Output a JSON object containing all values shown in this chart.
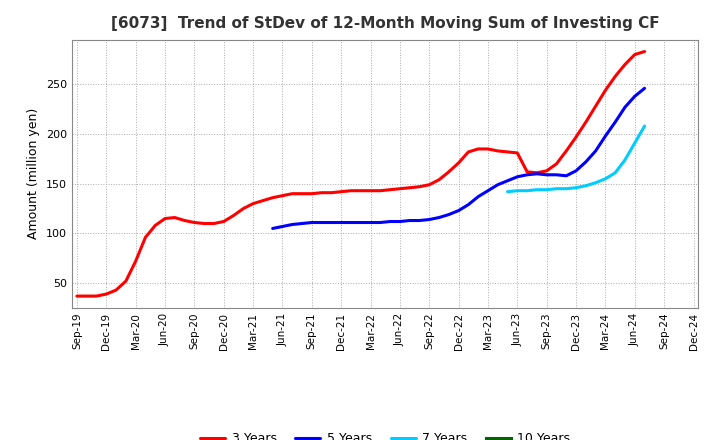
{
  "title": "[6073]  Trend of StDev of 12-Month Moving Sum of Investing CF",
  "ylabel": "Amount (million yen)",
  "background_color": "#ffffff",
  "grid_color": "#aaaaaa",
  "series": {
    "3 Years": {
      "color": "#ff0000",
      "x": [
        0,
        1,
        2,
        3,
        4,
        5,
        6,
        7,
        8,
        9,
        10,
        11,
        12,
        13,
        14,
        15,
        16,
        17,
        18,
        19,
        20,
        21,
        22,
        23,
        24,
        25,
        26,
        27,
        28,
        29,
        30,
        31,
        32,
        33,
        34,
        35,
        36,
        37,
        38,
        39,
        40,
        41,
        42,
        43,
        44,
        45,
        46,
        47,
        48,
        49,
        50,
        51,
        52,
        53,
        54,
        55,
        56,
        57,
        58
      ],
      "y": [
        37,
        37,
        37,
        39,
        43,
        52,
        72,
        96,
        108,
        115,
        116,
        113,
        111,
        110,
        110,
        112,
        118,
        125,
        130,
        133,
        136,
        138,
        140,
        140,
        140,
        141,
        141,
        142,
        143,
        143,
        143,
        143,
        144,
        145,
        146,
        147,
        149,
        154,
        162,
        171,
        182,
        185,
        185,
        183,
        182,
        181,
        162,
        161,
        163,
        170,
        183,
        197,
        212,
        228,
        244,
        258,
        270,
        280,
        283
      ]
    },
    "5 Years": {
      "color": "#0000ff",
      "x": [
        20,
        21,
        22,
        23,
        24,
        25,
        26,
        27,
        28,
        29,
        30,
        31,
        32,
        33,
        34,
        35,
        36,
        37,
        38,
        39,
        40,
        41,
        42,
        43,
        44,
        45,
        46,
        47,
        48,
        49,
        50,
        51,
        52,
        53,
        54,
        55,
        56,
        57,
        58
      ],
      "y": [
        105,
        107,
        109,
        110,
        111,
        111,
        111,
        111,
        111,
        111,
        111,
        111,
        112,
        112,
        113,
        113,
        114,
        116,
        119,
        123,
        129,
        137,
        143,
        149,
        153,
        157,
        159,
        160,
        159,
        159,
        158,
        163,
        172,
        183,
        198,
        212,
        227,
        238,
        246
      ]
    },
    "7 Years": {
      "color": "#00ccff",
      "x": [
        44,
        45,
        46,
        47,
        48,
        49,
        50,
        51,
        52,
        53,
        54,
        55,
        56,
        57,
        58
      ],
      "y": [
        142,
        143,
        143,
        144,
        144,
        145,
        145,
        146,
        148,
        151,
        155,
        161,
        174,
        191,
        208
      ]
    },
    "10 Years": {
      "color": "#006600",
      "x": [],
      "y": []
    }
  },
  "xtick_labels": [
    "Sep-19",
    "Dec-19",
    "Mar-20",
    "Jun-20",
    "Sep-20",
    "Dec-20",
    "Mar-21",
    "Jun-21",
    "Sep-21",
    "Dec-21",
    "Mar-22",
    "Jun-22",
    "Sep-22",
    "Dec-22",
    "Mar-23",
    "Jun-23",
    "Sep-23",
    "Dec-23",
    "Mar-24",
    "Jun-24",
    "Sep-24",
    "Dec-24"
  ],
  "xtick_positions": [
    0,
    3,
    6,
    9,
    12,
    15,
    18,
    21,
    24,
    27,
    30,
    33,
    36,
    39,
    42,
    45,
    48,
    51,
    54,
    57,
    60,
    63
  ],
  "ylim": [
    25,
    295
  ],
  "xlim": [
    -0.5,
    63.5
  ]
}
